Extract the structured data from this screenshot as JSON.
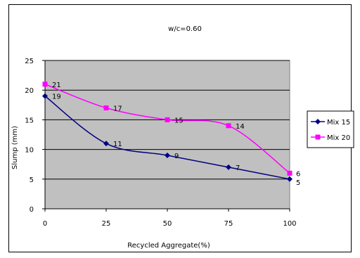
{
  "chart_data": {
    "type": "line",
    "title": "w/c=0.60",
    "xlabel": "Recycled Aggregate(%)",
    "ylabel": "Slump (mm)",
    "x": [
      0,
      25,
      50,
      75,
      100
    ],
    "x_ticks": [
      "0",
      "25",
      "50",
      "75",
      "100"
    ],
    "y_ticks": [
      "0",
      "5",
      "10",
      "15",
      "20",
      "25"
    ],
    "ylim": [
      0,
      25
    ],
    "xlim": [
      0,
      100
    ],
    "grid": "horizontal",
    "legend_position": "right",
    "plot_background": "#c0c0c0",
    "series": [
      {
        "name": "Mix 15",
        "values": [
          19,
          11,
          9,
          7,
          5
        ],
        "labels": [
          "19",
          "11",
          "9",
          "7",
          "5"
        ],
        "color": "#000080",
        "marker": "diamond"
      },
      {
        "name": "Mix 20",
        "values": [
          21,
          17,
          15,
          14,
          6
        ],
        "labels": [
          "21",
          "17",
          "15",
          "14",
          "6"
        ],
        "color": "#ff00ff",
        "marker": "square"
      }
    ]
  }
}
